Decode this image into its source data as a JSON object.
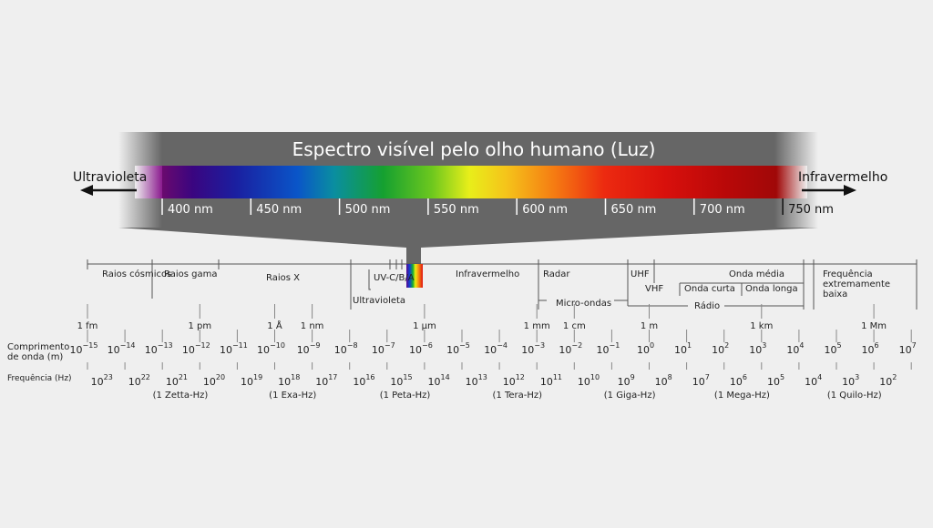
{
  "title": "Espectro visível pelo olho humano (Luz)",
  "ultraviolet_label": "Ultravioleta",
  "infrared_label": "Infravermelho",
  "visible_ticks": [
    "400 nm",
    "450 nm",
    "500 nm",
    "550 nm",
    "600 nm",
    "650 nm",
    "700 nm",
    "750 nm"
  ],
  "bands": {
    "cosmic": "Raios cósmicos",
    "gamma": "Raios gama",
    "xray": "Raios X",
    "uv_cba": "UV-C/B/A",
    "ultraviolet": "Ultravioleta",
    "infrared": "Infravermelho",
    "radar": "Radar",
    "microwaves": "Micro-ondas",
    "uhf": "UHF",
    "vhf": "VHF",
    "short_wave": "Onda curta",
    "medium_wave": "Onda média",
    "long_wave": "Onda longa",
    "radio": "Rádio",
    "elf": "Frequência extremamente baixa"
  },
  "length_units": [
    {
      "label": "1 fm",
      "exp": -15
    },
    {
      "label": "1 pm",
      "exp": -12
    },
    {
      "label": "1 Å",
      "exp": -10
    },
    {
      "label": "1 nm",
      "exp": -9
    },
    {
      "label": "1 µm",
      "exp": -6
    },
    {
      "label": "1 mm",
      "exp": -3
    },
    {
      "label": "1 cm",
      "exp": -2
    },
    {
      "label": "1 m",
      "exp": 0
    },
    {
      "label": "1 km",
      "exp": 3
    },
    {
      "label": "1 Mm",
      "exp": 6
    }
  ],
  "wavelength_label": "Comprimento de onda (m)",
  "wavelength_exponents": [
    "−15",
    "−14",
    "−13",
    "−12",
    "−11",
    "−10",
    "−9",
    "−8",
    "−7",
    "−6",
    "−5",
    "−4",
    "−3",
    "−2",
    "−1",
    "0",
    "1",
    "2",
    "3",
    "4",
    "5",
    "6",
    "7"
  ],
  "frequency_label": "Frequência (Hz)",
  "frequency_exponents": [
    "23",
    "22",
    "21",
    "20",
    "19",
    "18",
    "17",
    "16",
    "15",
    "14",
    "13",
    "12",
    "11",
    "10",
    "9",
    "8",
    "7",
    "6",
    "5",
    "4",
    "3",
    "2"
  ],
  "frequency_units": [
    {
      "label": "(1 Zetta-Hz)",
      "exp": 21
    },
    {
      "label": "(1 Exa-Hz)",
      "exp": 18
    },
    {
      "label": "(1 Peta-Hz)",
      "exp": 15
    },
    {
      "label": "(1 Tera-Hz)",
      "exp": 12
    },
    {
      "label": "(1 Giga-Hz)",
      "exp": 9
    },
    {
      "label": "(1 Mega-Hz)",
      "exp": 6
    },
    {
      "label": "(1 Quilo-Hz)",
      "exp": 3
    }
  ],
  "colors": {
    "background": "#efefef",
    "zoom": "#666666",
    "text": "#222222",
    "white": "#ffffff"
  }
}
